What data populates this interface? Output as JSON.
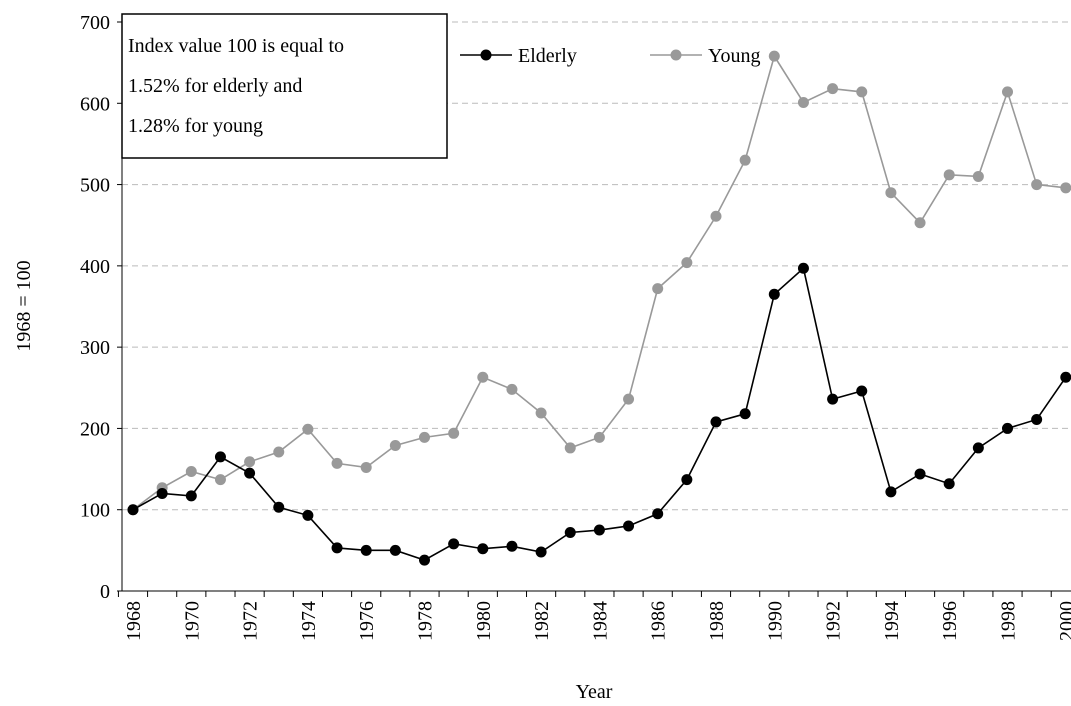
{
  "chart_data": {
    "type": "line",
    "x_label": "Year",
    "y_label": "1968 = 100",
    "annotation": [
      "Index value 100 is equal to",
      "1.52%  for elderly and",
      "1.28%  for young"
    ],
    "categories": [
      "1968",
      null,
      "1970",
      null,
      "1972",
      null,
      "1974",
      null,
      "1976",
      null,
      "1978",
      null,
      "1980",
      null,
      "1982",
      null,
      "1984",
      null,
      "1986",
      null,
      "1988",
      null,
      "1990",
      null,
      "1992",
      null,
      "1994",
      null,
      "1996",
      null,
      "1998",
      null,
      "2000"
    ],
    "series": [
      {
        "name": "Elderly",
        "color": "#000000",
        "values": [
          100,
          120,
          117,
          165,
          145,
          103,
          93,
          53,
          50,
          50,
          38,
          58,
          52,
          55,
          48,
          72,
          75,
          80,
          95,
          137,
          208,
          218,
          365,
          397,
          236,
          246,
          122,
          144,
          132,
          176,
          200,
          211,
          263
        ]
      },
      {
        "name": "Young",
        "color": "#999999",
        "values": [
          100,
          127,
          147,
          137,
          159,
          171,
          199,
          157,
          152,
          179,
          189,
          194,
          263,
          248,
          219,
          176,
          189,
          236,
          372,
          404,
          461,
          530,
          658,
          601,
          618,
          614,
          490,
          453,
          512,
          510,
          614,
          500,
          496
        ]
      }
    ],
    "ylim": [
      0,
      700
    ],
    "yticks": [
      0,
      100,
      200,
      300,
      400,
      500,
      600,
      700
    ],
    "grid": true,
    "legend": "top"
  }
}
